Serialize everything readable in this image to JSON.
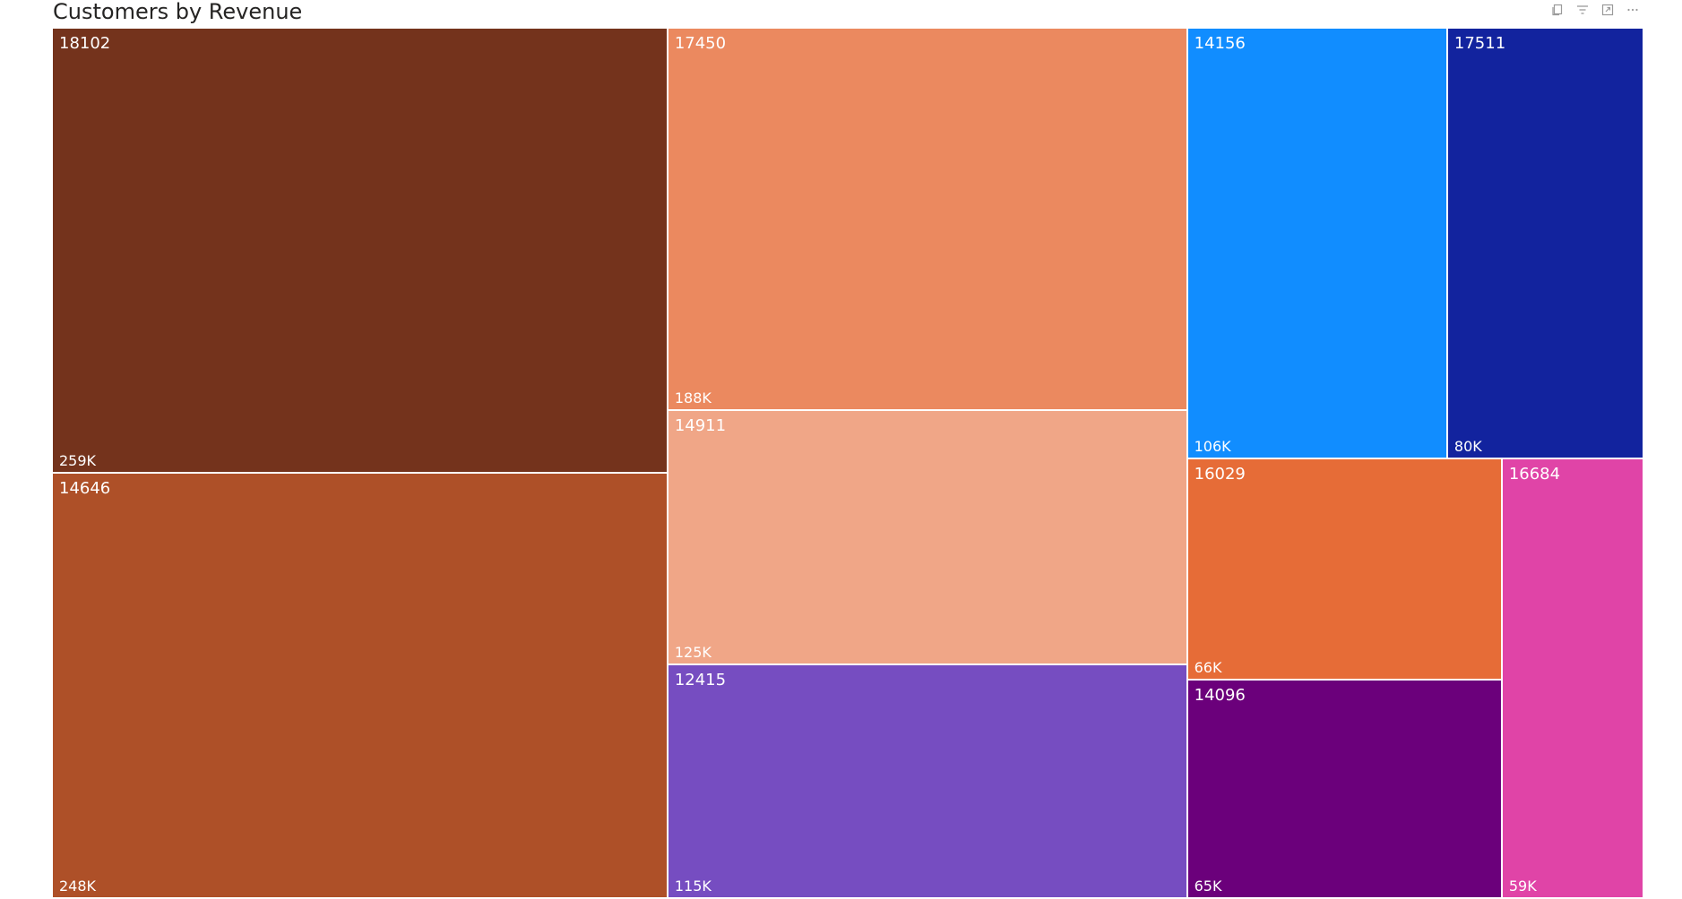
{
  "visual": {
    "title": "Customers by Revenue",
    "header_icons": [
      "copy-icon",
      "filter-icon",
      "focus-mode-icon",
      "more-options-icon"
    ]
  },
  "chart_data": {
    "type": "treemap",
    "title": "Customers by Revenue",
    "items": [
      {
        "label": "18102",
        "value": 259,
        "display": "259K",
        "color": "#74331C"
      },
      {
        "label": "14646",
        "value": 248,
        "display": "248K",
        "color": "#AE5028"
      },
      {
        "label": "17450",
        "value": 188,
        "display": "188K",
        "color": "#EB895F"
      },
      {
        "label": "14911",
        "value": 125,
        "display": "125K",
        "color": "#F0A687"
      },
      {
        "label": "12415",
        "value": 115,
        "display": "115K",
        "color": "#764DC1"
      },
      {
        "label": "14156",
        "value": 106,
        "display": "106K",
        "color": "#118DFF"
      },
      {
        "label": "17511",
        "value": 80,
        "display": "80K",
        "color": "#12239E"
      },
      {
        "label": "16029",
        "value": 66,
        "display": "66K",
        "color": "#E66C37"
      },
      {
        "label": "14096",
        "value": 65,
        "display": "65K",
        "color": "#6B007B"
      },
      {
        "label": "16684",
        "value": 59,
        "display": "59K",
        "color": "#E044A7"
      }
    ]
  }
}
